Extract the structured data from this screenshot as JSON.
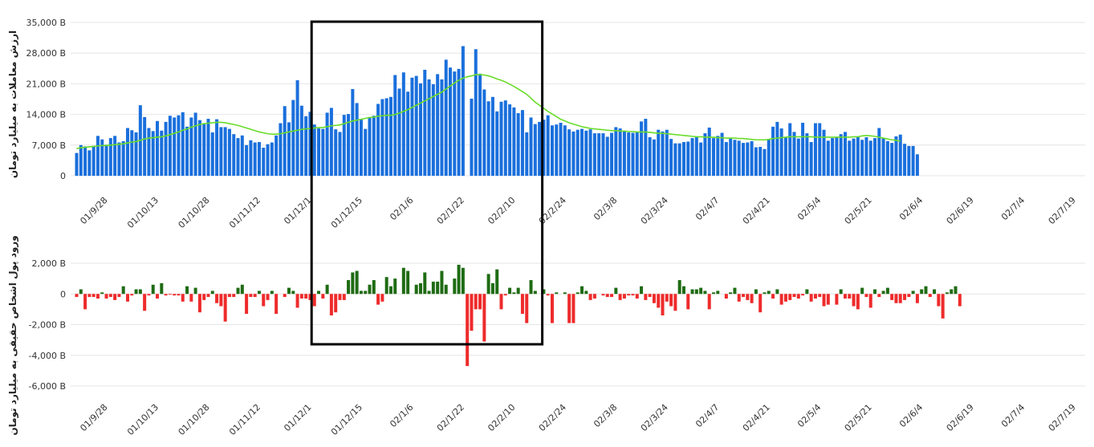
{
  "colors": {
    "volume": "#1a6fdc",
    "ma": "#6adc2a",
    "inflow": "#1f6b14",
    "outflow": "#ee2b2b",
    "grid": "#e6e6e6",
    "box": "#000000"
  },
  "chart_data": [
    {
      "type": "bar",
      "ylabel": "ارزش معاملات به میلیارد تومان",
      "ylim": [
        0,
        35000
      ],
      "yticks": [
        "0",
        "7,000 B",
        "14,000 B",
        "21,000 B",
        "28,000 B",
        "35,000 B"
      ],
      "ytick_values": [
        0,
        7000,
        14000,
        21000,
        28000,
        35000
      ],
      "xticks": [
        "01/9/28",
        "01/10/13",
        "01/10/28",
        "01/11/12",
        "01/12/1",
        "01/12/15",
        "02/1/6",
        "02/1/22",
        "02/2/10",
        "02/2/24",
        "02/3/8",
        "02/3/24",
        "02/4/7",
        "02/4/21",
        "02/5/4",
        "02/5/21",
        "02/6/4",
        "02/6/19",
        "02/7/4",
        "02/7/19"
      ],
      "xtick_index": [
        7,
        19,
        31,
        43,
        55,
        67,
        79,
        91,
        103,
        115,
        127,
        139,
        151,
        163,
        175,
        187,
        199,
        211,
        223,
        235
      ],
      "grid": true,
      "highlight_range": [
        56,
        109
      ],
      "series": [
        {
          "kind": "bar",
          "values": [
            5200,
            7000,
            6700,
            5800,
            6800,
            9100,
            8300,
            7100,
            8600,
            9100,
            7600,
            7900,
            10900,
            10400,
            9900,
            16100,
            13400,
            10900,
            10200,
            12500,
            10300,
            12300,
            13700,
            13300,
            13800,
            14500,
            11200,
            13300,
            14400,
            12700,
            11800,
            13000,
            9900,
            12900,
            11100,
            11100,
            10700,
            9500,
            8600,
            9200,
            7000,
            8100,
            7600,
            7700,
            6400,
            7200,
            7600,
            9200,
            12000,
            15900,
            12200,
            17300,
            21800,
            16000,
            13600,
            14600,
            11700,
            10800,
            10700,
            14400,
            15500,
            10600,
            10000,
            13900,
            14100,
            19800,
            16600,
            12900,
            10700,
            13400,
            13700,
            16400,
            17500,
            17700,
            18000,
            23000,
            19900,
            23600,
            19200,
            22400,
            22800,
            21100,
            24200,
            22000,
            20900,
            23200,
            22000,
            26500,
            24700,
            23800,
            24400,
            29600,
            null,
            17600,
            28900,
            23300,
            19700,
            17000,
            18000,
            14700,
            16900,
            17200,
            16300,
            15600,
            14300,
            15000,
            9900,
            13300,
            11800,
            12300,
            12800,
            13800,
            11500,
            11700,
            12100,
            11500,
            10600,
            10100,
            10500,
            10700,
            10300,
            10600,
            9700,
            9700,
            9700,
            8900,
            9800,
            11100,
            10800,
            10300,
            9900,
            9800,
            9900,
            12400,
            13000,
            8800,
            8300,
            10500,
            10100,
            10500,
            8400,
            7400,
            7400,
            7700,
            7800,
            8600,
            8900,
            7600,
            9700,
            11000,
            8600,
            9100,
            9800,
            7700,
            8500,
            8200,
            8000,
            7500,
            7600,
            7900,
            6500,
            6600,
            6100,
            8400,
            11200,
            12300,
            10800,
            8700,
            12000,
            10000,
            8500,
            12100,
            9700,
            7700,
            12000,
            12000,
            10500,
            8000,
            8600,
            8900,
            9500,
            10000,
            8000,
            8500,
            8800,
            8200,
            8800,
            8000,
            8600,
            10900,
            8600,
            7900,
            7500,
            9000,
            9400,
            7300,
            6800,
            6800,
            4900
          ]
        },
        {
          "kind": "line",
          "values": [
            6200,
            6400,
            6500,
            6600,
            6700,
            6800,
            6900,
            6900,
            7000,
            7100,
            7200,
            7300,
            7500,
            7700,
            7800,
            8100,
            8400,
            8600,
            8700,
            8800,
            8900,
            9100,
            9400,
            9700,
            10000,
            10400,
            10700,
            11100,
            11400,
            11700,
            11900,
            12000,
            12100,
            12200,
            12200,
            12100,
            11900,
            11700,
            11500,
            11200,
            10900,
            10600,
            10300,
            10000,
            9800,
            9600,
            9500,
            9500,
            9600,
            9800,
            10000,
            10200,
            10400,
            10600,
            10700,
            10800,
            10900,
            11000,
            11000,
            11200,
            11400,
            11500,
            11600,
            11900,
            12200,
            12500,
            12700,
            12900,
            13100,
            13300,
            13400,
            13600,
            13700,
            13800,
            13800,
            14000,
            14300,
            14700,
            15100,
            15600,
            16100,
            16600,
            17100,
            17600,
            18100,
            18600,
            19100,
            19800,
            20500,
            21200,
            21800,
            22300,
            22600,
            22800,
            23100,
            23100,
            23000,
            22800,
            22500,
            22100,
            21800,
            21400,
            20900,
            20400,
            19800,
            19200,
            18600,
            17700,
            16800,
            16100,
            15400,
            14700,
            14100,
            13500,
            12900,
            12500,
            12100,
            11800,
            11500,
            11200,
            11000,
            10800,
            10700,
            10600,
            10500,
            10400,
            10300,
            10300,
            10200,
            10200,
            10100,
            10100,
            10000,
            10000,
            10000,
            9900,
            9800,
            9700,
            9700,
            9600,
            9500,
            9400,
            9300,
            9200,
            9100,
            9000,
            8900,
            8900,
            8800,
            8800,
            8800,
            8700,
            8700,
            8600,
            8600,
            8600,
            8500,
            8500,
            8400,
            8300,
            8200,
            8200,
            8200,
            8300,
            8500,
            8600,
            8700,
            8800,
            8900,
            8900,
            8900,
            8900,
            8900,
            8900,
            8800,
            8800,
            8800,
            8800,
            8800,
            8800,
            8800,
            8800,
            8800,
            8900,
            8900,
            9100,
            9200,
            9100,
            9000,
            8800,
            8600,
            8400,
            8200,
            8100,
            7900
          ]
        }
      ]
    },
    {
      "type": "bar",
      "ylabel": "ورود پول اشخاص حقیقی به میلیارد تومان",
      "ylim": [
        -6000,
        2000
      ],
      "yticks": [
        "-6,000 B",
        "-4,000 B",
        "-2,000 B",
        "0",
        "2,000 B"
      ],
      "ytick_values": [
        -6000,
        -4000,
        -2000,
        0,
        2000
      ],
      "xticks": [
        "01/9/28",
        "01/10/13",
        "01/10/28",
        "01/11/12",
        "01/12/1",
        "01/12/15",
        "02/1/6",
        "02/1/22",
        "02/2/10",
        "02/2/24",
        "02/3/8",
        "02/3/24",
        "02/4/7",
        "02/4/21",
        "02/5/4",
        "02/5/21",
        "02/6/4",
        "02/6/19",
        "02/7/4",
        "02/7/19"
      ],
      "xtick_index": [
        7,
        19,
        31,
        43,
        55,
        67,
        79,
        91,
        103,
        115,
        127,
        139,
        151,
        163,
        175,
        187,
        199,
        211,
        223,
        235
      ],
      "grid": true,
      "highlight_range": [
        56,
        109
      ],
      "series": [
        {
          "kind": "signed-bar",
          "values": [
            -200,
            300,
            -1000,
            -200,
            -200,
            -300,
            100,
            -300,
            -200,
            -400,
            -200,
            500,
            -500,
            -100,
            300,
            300,
            -1100,
            -100,
            600,
            -300,
            700,
            -100,
            -50,
            -100,
            -100,
            -500,
            500,
            -500,
            400,
            -1200,
            -400,
            -200,
            200,
            -600,
            -800,
            -1800,
            -200,
            -200,
            400,
            600,
            -1300,
            -200,
            -200,
            200,
            -800,
            -400,
            200,
            -1300,
            0,
            -200,
            400,
            200,
            -900,
            -300,
            -300,
            -400,
            -800,
            200,
            -300,
            600,
            -1400,
            -1200,
            -400,
            -400,
            900,
            1400,
            1500,
            200,
            200,
            600,
            900,
            -700,
            -500,
            1100,
            500,
            1000,
            0,
            1700,
            1500,
            0,
            600,
            700,
            1400,
            200,
            800,
            800,
            1500,
            600,
            0,
            1000,
            1900,
            1700,
            -4700,
            -2400,
            -1000,
            -1000,
            -3100,
            1300,
            700,
            1600,
            -1000,
            -100,
            400,
            100,
            400,
            -1300,
            -1900,
            900,
            200,
            0,
            300,
            -100,
            -1900,
            100,
            0,
            100,
            -1900,
            -1900,
            100,
            500,
            200,
            -400,
            -300,
            0,
            -100,
            -200,
            -200,
            400,
            -400,
            -300,
            -100,
            -100,
            -300,
            500,
            -400,
            -200,
            -600,
            -900,
            -1400,
            -500,
            -800,
            -1100,
            900,
            500,
            -1000,
            300,
            300,
            400,
            200,
            -1000,
            100,
            200,
            0,
            -300,
            100,
            400,
            -500,
            -200,
            -400,
            -600,
            300,
            -1200,
            100,
            200,
            -300,
            300,
            -700,
            -500,
            -400,
            -200,
            -300,
            -100,
            300,
            -500,
            -300,
            -200,
            -800,
            -700,
            0,
            -700,
            300,
            -300,
            -300,
            -800,
            -1000,
            400,
            -200,
            -900,
            300,
            -200,
            200,
            400,
            -400,
            -600,
            -600,
            -400,
            -200,
            200,
            -600,
            300,
            500,
            -200,
            300,
            -800,
            -1600,
            100,
            300,
            500,
            -800
          ]
        }
      ]
    }
  ]
}
